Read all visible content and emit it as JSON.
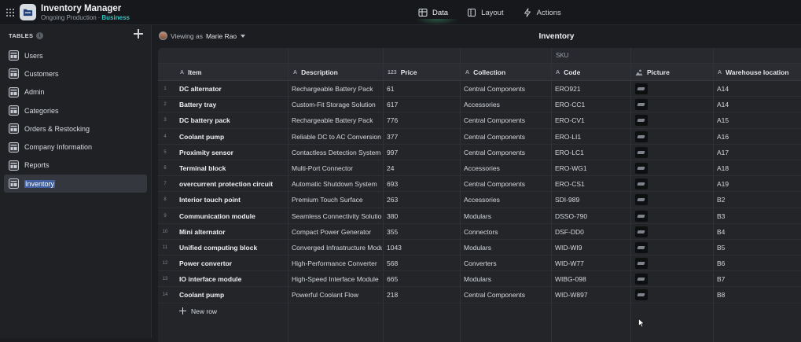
{
  "app": {
    "title": "Inventory Manager",
    "subtitle": "Ongoing Production",
    "separator": "·",
    "badge": "Business",
    "brand_color": "#35c2c1"
  },
  "topbar": {
    "tabs": [
      {
        "label": "Data",
        "icon": "data-icon",
        "active": true
      },
      {
        "label": "Layout",
        "icon": "layout-icon",
        "active": false
      },
      {
        "label": "Actions",
        "icon": "lightning-icon",
        "active": false
      }
    ]
  },
  "sidebar": {
    "heading": "TABLES",
    "items": [
      {
        "label": "Users"
      },
      {
        "label": "Customers"
      },
      {
        "label": "Admin"
      },
      {
        "label": "Categories"
      },
      {
        "label": "Orders & Restocking"
      },
      {
        "label": "Company Information"
      },
      {
        "label": "Reports"
      },
      {
        "label": "Inventory",
        "active": true
      }
    ]
  },
  "main": {
    "viewing_prefix": "Viewing as",
    "viewing_user": "Marie Rao",
    "title": "Inventory"
  },
  "table": {
    "group_label": "SKU",
    "columns": [
      {
        "label": "Item",
        "type_icon": "A"
      },
      {
        "label": "Description",
        "type_icon": "A"
      },
      {
        "label": "Price",
        "type_icon": "123"
      },
      {
        "label": "Collection",
        "type_icon": "A"
      },
      {
        "label": "Code",
        "type_icon": "A"
      },
      {
        "label": "Picture",
        "type_icon": "image-icon"
      },
      {
        "label": "Warehouse location",
        "type_icon": "A"
      }
    ],
    "rows": [
      {
        "n": "1",
        "item": "DC alternator",
        "description": "Rechargeable Battery Pack",
        "price": "61",
        "collection": "Central Components",
        "code": "ERO921",
        "location": "A14"
      },
      {
        "n": "2",
        "item": "Battery tray",
        "description": "Custom-Fit Storage Solution",
        "price": "617",
        "collection": "Accessories",
        "code": "ERO-CC1",
        "location": "A14"
      },
      {
        "n": "3",
        "item": "DC battery pack",
        "description": "Rechargeable Battery Pack",
        "price": "776",
        "collection": "Central Components",
        "code": "ERO-CV1",
        "location": "A15"
      },
      {
        "n": "4",
        "item": "Coolant pump",
        "description": "Reliable DC to AC Conversion",
        "price": "377",
        "collection": "Central Components",
        "code": "ERO-LI1",
        "location": "A16"
      },
      {
        "n": "5",
        "item": "Proximity sensor",
        "description": "Contactless Detection System",
        "price": "997",
        "collection": "Central Components",
        "code": "ERO-LC1",
        "location": "A17"
      },
      {
        "n": "6",
        "item": "Terminal block",
        "description": "Multi-Port Connector",
        "price": "24",
        "collection": "Accessories",
        "code": "ERO-WG1",
        "location": "A18"
      },
      {
        "n": "7",
        "item": "overcurrent protection circuit",
        "description": "Automatic Shutdown System",
        "price": "693",
        "collection": "Central Components",
        "code": "ERO-CS1",
        "location": "A19"
      },
      {
        "n": "8",
        "item": "Interior touch point",
        "description": "Premium Touch Surface",
        "price": "263",
        "collection": "Accessories",
        "code": "SDI-989",
        "location": "B2"
      },
      {
        "n": "9",
        "item": "Communication module",
        "description": "Seamless Connectivity Solution",
        "price": "380",
        "collection": "Modulars",
        "code": "DSSO-790",
        "location": "B3"
      },
      {
        "n": "10",
        "item": "Mini alternator",
        "description": "Compact Power Generator",
        "price": "355",
        "collection": "Connectors",
        "code": "DSF-DD0",
        "location": "B4"
      },
      {
        "n": "11",
        "item": "Unified computing block",
        "description": "Converged Infrastructure Module",
        "price": "1043",
        "collection": "Modulars",
        "code": "WID-WI9",
        "location": "B5"
      },
      {
        "n": "12",
        "item": "Power convertor",
        "description": "High-Performance Converter",
        "price": "568",
        "collection": "Converters",
        "code": "WID-W77",
        "location": "B6"
      },
      {
        "n": "13",
        "item": "IO interface module",
        "description": "High-Speed Interface Module",
        "price": "665",
        "collection": "Modulars",
        "code": "WIBG-098",
        "location": "B7"
      },
      {
        "n": "14",
        "item": "Coolant pump",
        "description": "Powerful Coolant Flow",
        "price": "218",
        "collection": "Central Components",
        "code": "WID-W897",
        "location": "B8"
      }
    ],
    "new_row_label": "New row"
  }
}
